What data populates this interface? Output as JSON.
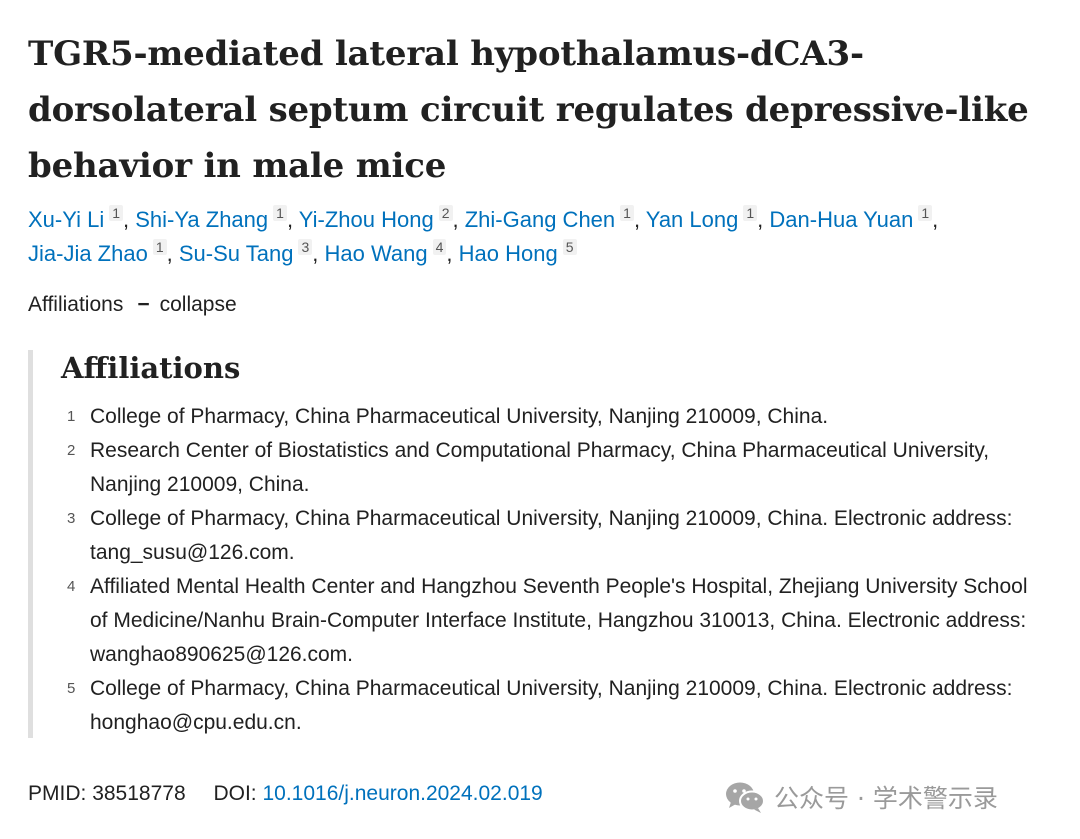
{
  "article": {
    "title": "TGR5-mediated lateral hypothalamus-dCA3-dorsolateral septum circuit regulates depressive-like behavior in male mice"
  },
  "authors": [
    {
      "name": "Xu-Yi Li",
      "aff": "1"
    },
    {
      "name": "Shi-Ya Zhang",
      "aff": "1"
    },
    {
      "name": "Yi-Zhou Hong",
      "aff": "2"
    },
    {
      "name": "Zhi-Gang Chen",
      "aff": "1"
    },
    {
      "name": "Yan Long",
      "aff": "1"
    },
    {
      "name": "Dan-Hua Yuan",
      "aff": "1"
    },
    {
      "name": "Jia-Jia Zhao",
      "aff": "1"
    },
    {
      "name": "Su-Su Tang",
      "aff": "3"
    },
    {
      "name": "Hao Wang",
      "aff": "4"
    },
    {
      "name": "Hao Hong",
      "aff": "5"
    }
  ],
  "affiliations_toggle": {
    "label": "Affiliations",
    "dash": "−",
    "action": "collapse"
  },
  "affiliations": {
    "heading": "Affiliations",
    "items": [
      {
        "num": "1",
        "text": "College of Pharmacy, China Pharmaceutical University, Nanjing 210009, China."
      },
      {
        "num": "2",
        "text": "Research Center of Biostatistics and Computational Pharmacy, China Pharmaceutical University, Nanjing 210009, China."
      },
      {
        "num": "3",
        "text": "College of Pharmacy, China Pharmaceutical University, Nanjing 210009, China. Electronic address: tang_susu@126.com."
      },
      {
        "num": "4",
        "text": "Affiliated Mental Health Center and Hangzhou Seventh People's Hospital, Zhejiang University School of Medicine/Nanhu Brain-Computer Interface Institute, Hangzhou 310013, China. Electronic address: wanghao890625@126.com."
      },
      {
        "num": "5",
        "text": "College of Pharmacy, China Pharmaceutical University, Nanjing 210009, China. Electronic address: honghao@cpu.edu.cn."
      }
    ]
  },
  "identifiers": {
    "pmid_label": "PMID:",
    "pmid": "38518778",
    "doi_label": "DOI:",
    "doi": "10.1016/j.neuron.2024.02.019"
  },
  "watermark": {
    "text": "公众号 · 学术警示录",
    "icon": "wechat-icon"
  },
  "colors": {
    "link": "#0071bc",
    "text": "#212121",
    "panel_border": "#dfdfdf"
  }
}
